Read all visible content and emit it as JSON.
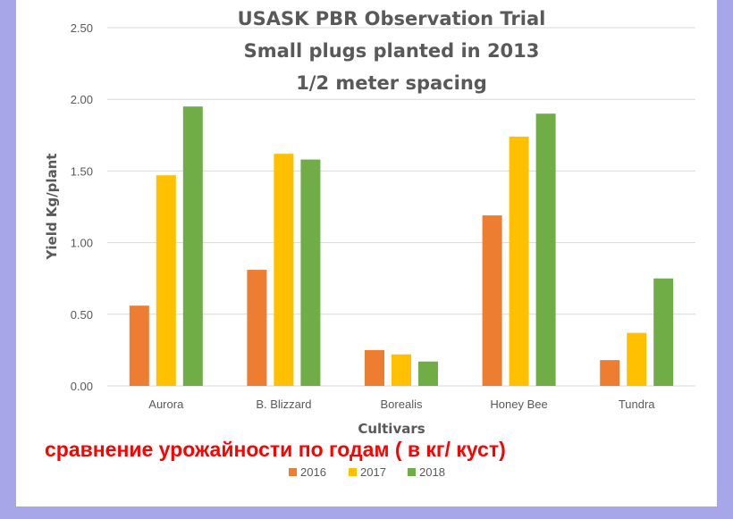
{
  "caption": "сравнение урожайности по годам ( в кг/ куст)",
  "colors": {
    "frame": "#a6a6e8",
    "grid": "#d9d9d9",
    "caption": "#ff0000"
  },
  "chart_data": {
    "type": "bar",
    "title_lines": [
      "USASK PBR Observation Trial",
      "Small plugs planted in 2013",
      "1/2 meter spacing"
    ],
    "xlabel": "Cultivars",
    "ylabel": "Yield  Kg/plant",
    "ylim": [
      0,
      2.5
    ],
    "yticks": [
      "0.00",
      "0.50",
      "1.00",
      "1.50",
      "2.00",
      "2.50"
    ],
    "grid": true,
    "legend_position": "bottom",
    "categories": [
      "Aurora",
      "B. Blizzard",
      "Borealis",
      "Honey Bee",
      "Tundra"
    ],
    "series": [
      {
        "name": "2016",
        "color": "#ed7d31",
        "values": [
          0.56,
          0.81,
          0.25,
          1.19,
          0.18
        ]
      },
      {
        "name": "2017",
        "color": "#ffc000",
        "values": [
          1.47,
          1.62,
          0.22,
          1.74,
          0.37
        ]
      },
      {
        "name": "2018",
        "color": "#70ad47",
        "values": [
          1.95,
          1.58,
          0.17,
          1.9,
          0.75
        ]
      }
    ]
  }
}
